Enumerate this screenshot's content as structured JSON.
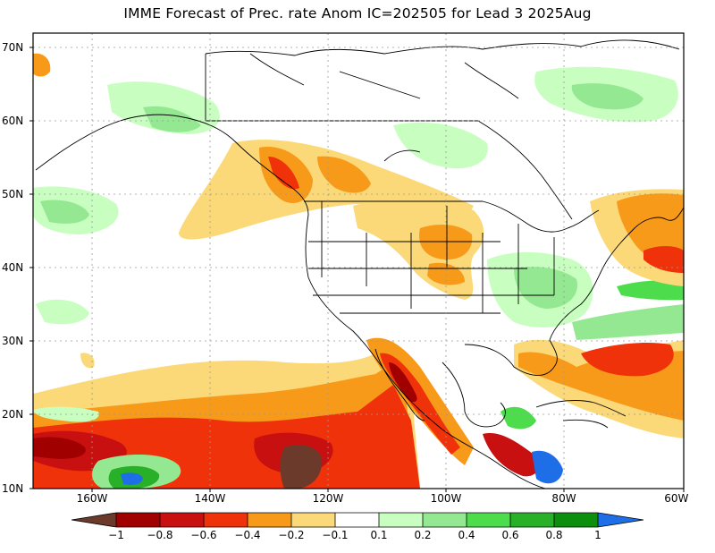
{
  "title": "IMME Forecast of Prec. rate Anom IC=202505 for Lead 3 2025Aug",
  "axes": {
    "lat_labels": [
      "70N",
      "60N",
      "50N",
      "40N",
      "30N",
      "20N",
      "10N"
    ],
    "lon_labels": [
      "160W",
      "140W",
      "120W",
      "100W",
      "80W",
      "60W"
    ]
  },
  "colorbar": {
    "labels": [
      "−1",
      "−0.8",
      "−0.6",
      "−0.4",
      "−0.2",
      "−0.1",
      "0.1",
      "0.2",
      "0.4",
      "0.6",
      "0.8",
      "1"
    ],
    "colors": [
      "#6b3a2a",
      "#a00000",
      "#c81010",
      "#f0320a",
      "#f79a1a",
      "#fbd978",
      "#ffffff",
      "#c8ffc0",
      "#95e892",
      "#4cdc4c",
      "#28b028",
      "#0c8f0c",
      "#1e6ee8"
    ]
  },
  "legend_colors": {
    "neg_strong": "#a00000",
    "neg_med": "#f0320a",
    "neg_weak": "#f79a1a",
    "neg_light": "#fbd978",
    "pos_light": "#c8ffc0",
    "pos_weak": "#95e892",
    "pos_med": "#4cdc4c",
    "pos_strong": "#0c8f0c",
    "pos_max": "#1e6ee8"
  }
}
